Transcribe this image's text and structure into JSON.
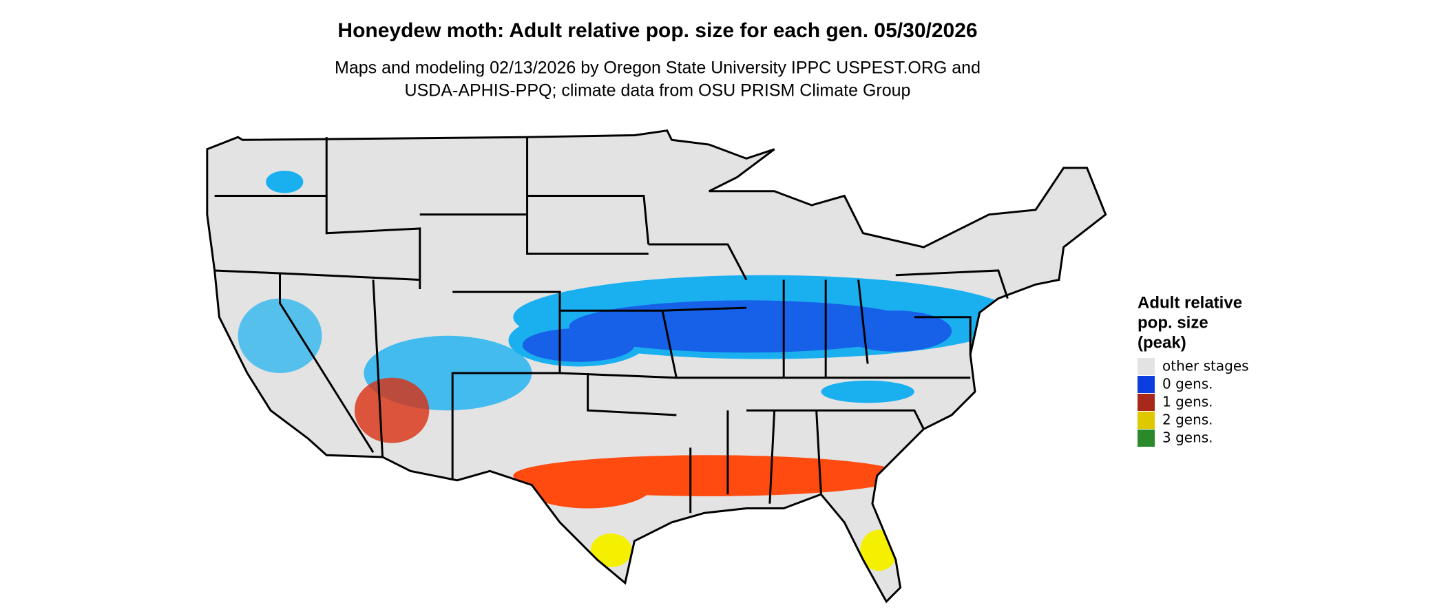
{
  "header": {
    "title": "Honeydew moth: Adult relative pop. size for each gen. 05/30/2026",
    "subtitle_lines": [
      "Maps and modeling 02/13/2026 by Oregon State University IPPC USPEST.ORG and",
      "USDA-APHIS-PPQ; climate data from OSU PRISM Climate Group"
    ]
  },
  "legend": {
    "title_lines": [
      "Adult relative",
      "pop. size",
      "(peak)"
    ],
    "entries": [
      {
        "label": "other stages",
        "color": "#e3e3e3"
      },
      {
        "label": "0 gens.",
        "color": "#0a3ee0"
      },
      {
        "label": "1 gens.",
        "color": "#a8281a"
      },
      {
        "label": "2 gens.",
        "color": "#e0c800"
      },
      {
        "label": "3 gens.",
        "color": "#2a8a2a"
      }
    ]
  }
}
